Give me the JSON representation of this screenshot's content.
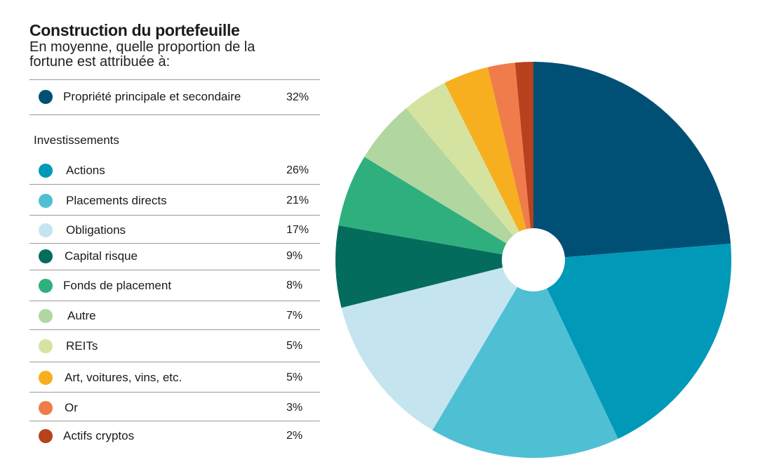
{
  "title": "Construction du portefeuille",
  "subtitle": "En moyenne, quelle proportion de la fortune est attribuée à:",
  "section_label": "Investissements",
  "legend": [
    {
      "label": "Propriété principale et secondaire",
      "value": "32%",
      "color": "#004F74"
    },
    {
      "label": "Actions",
      "value": "26%",
      "color": "#0099B8"
    },
    {
      "label": "Placements directs",
      "value": "21%",
      "color": "#4FBFD4"
    },
    {
      "label": "Obligations",
      "value": "17%",
      "color": "#C4E5EF"
    },
    {
      "label": "Capital risque",
      "value": "9%",
      "color": "#046C5C"
    },
    {
      "label": "Fonds de placement",
      "value": "8%",
      "color": "#2FAF7D"
    },
    {
      "label": "Autre",
      "value": "7%",
      "color": "#B2D69F"
    },
    {
      "label": "REITs",
      "value": "5%",
      "color": "#D5E3A1"
    },
    {
      "label": "Art, voitures, vins, etc.",
      "value": "5%",
      "color": "#F7AE1F"
    },
    {
      "label": "Or",
      "value": "3%",
      "color": "#EF7C4A"
    },
    {
      "label": "Actifs cryptos",
      "value": "2%",
      "color": "#B8411E"
    }
  ],
  "chart_data": {
    "type": "pie",
    "title": "Construction du portefeuille",
    "subtitle": "En moyenne, quelle proportion de la fortune est attribuée à:",
    "categories": [
      "Propriété principale et secondaire",
      "Actions",
      "Placements directs",
      "Obligations",
      "Capital risque",
      "Fonds de placement",
      "Autre",
      "REITs",
      "Art, voitures, vins, etc.",
      "Or",
      "Actifs cryptos"
    ],
    "values": [
      32,
      26,
      21,
      17,
      9,
      8,
      7,
      5,
      5,
      3,
      2
    ],
    "unit": "%",
    "colors": [
      "#004F74",
      "#0099B8",
      "#4FBFD4",
      "#C4E5EF",
      "#046C5C",
      "#2FAF7D",
      "#B2D69F",
      "#D5E3A1",
      "#F7AE1F",
      "#EF7C4A",
      "#B8411E"
    ],
    "legend_position": "left"
  }
}
